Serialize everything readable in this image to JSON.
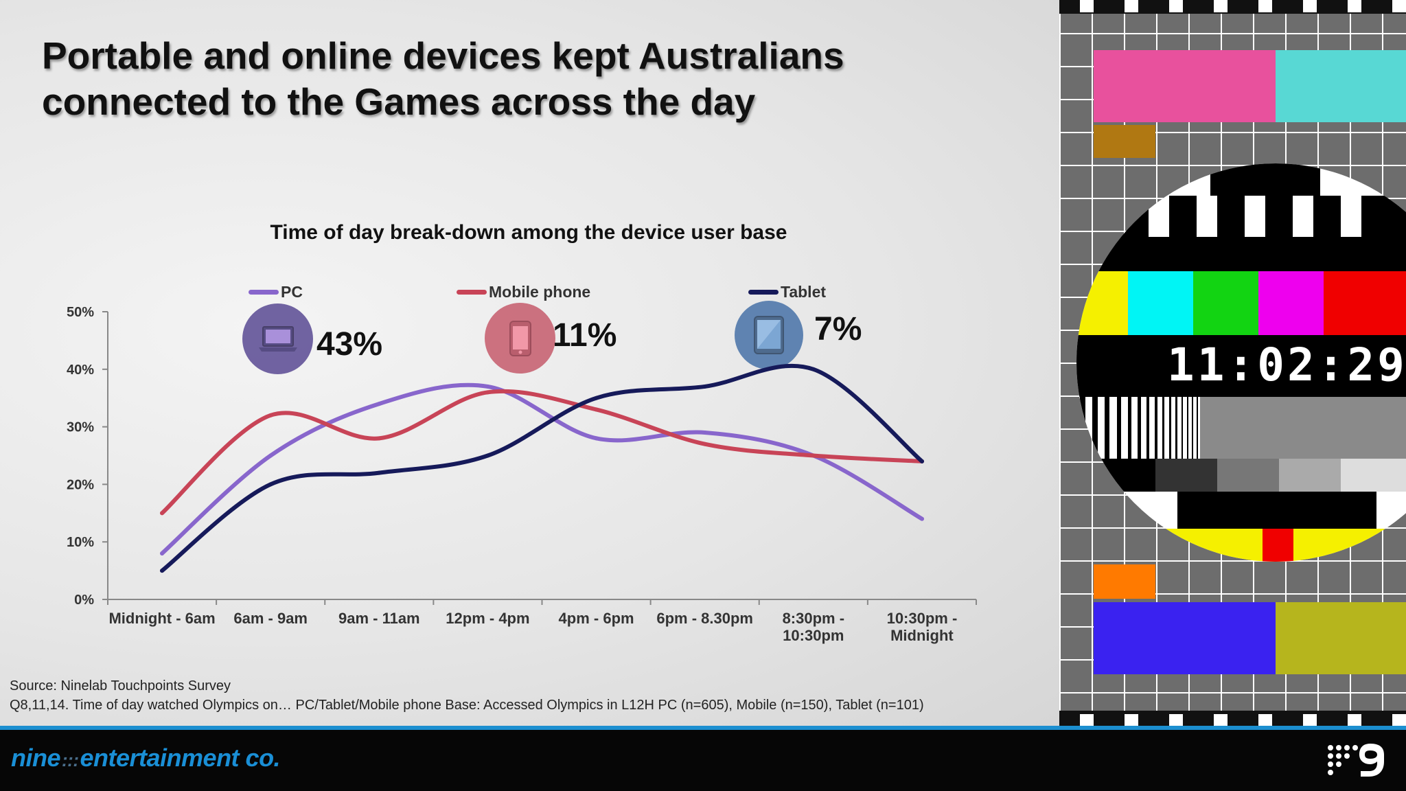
{
  "slide": {
    "headline": "Portable and online devices kept Australians connected to the Games across the day",
    "source_line1": "Source: Ninelab Touchpoints Survey",
    "source_line2": "Q8,11,14. Time of day watched Olympics on… PC/Tablet/Mobile phone Base: Accessed Olympics in L12H PC (n=605), Mobile (n=150), Tablet (n=101)"
  },
  "devices": [
    {
      "name": "PC",
      "share": "43%",
      "icon": "laptop-icon",
      "color": "#5a4a93"
    },
    {
      "name": "Mobile phone",
      "share": "11%",
      "icon": "smartphone-icon",
      "color": "#c65c6c"
    },
    {
      "name": "Tablet",
      "share": "7%",
      "icon": "tablet-icon",
      "color": "#4872a8"
    }
  ],
  "footer": {
    "brand_word1": "nine",
    "brand_dots": ":::",
    "brand_word2": "entertainment co.",
    "logo": "nine-network-logo"
  },
  "test_card": {
    "time": "11:02:29"
  },
  "chart_data": {
    "type": "line",
    "title": "Time of day break-down among the device user base",
    "xlabel": "",
    "ylabel": "",
    "categories": [
      "Midnight - 6am",
      "6am - 9am",
      "9am - 11am",
      "12pm - 4pm",
      "4pm - 6pm",
      "6pm - 8.30pm",
      "8:30pm - 10:30pm",
      "10:30pm - Midnight"
    ],
    "category_lines": [
      [
        "Midnight - 6am"
      ],
      [
        "6am - 9am"
      ],
      [
        "9am - 11am"
      ],
      [
        "12pm - 4pm"
      ],
      [
        "4pm - 6pm"
      ],
      [
        "6pm - 8.30pm"
      ],
      [
        "8:30pm -",
        "10:30pm"
      ],
      [
        "10:30pm -",
        "Midnight"
      ]
    ],
    "ylim": [
      0,
      50
    ],
    "yticks": [
      0,
      10,
      20,
      30,
      40,
      50
    ],
    "ytick_labels": [
      "0%",
      "10%",
      "20%",
      "30%",
      "40%",
      "50%"
    ],
    "grid": false,
    "legend": "top",
    "series": [
      {
        "name": "PC",
        "color": "#8866cc",
        "values": [
          8,
          25,
          34,
          37,
          28,
          29,
          25,
          14
        ]
      },
      {
        "name": "Mobile phone",
        "color": "#c84457",
        "values": [
          15,
          32,
          28,
          36,
          33,
          27,
          25,
          24
        ]
      },
      {
        "name": "Tablet",
        "color": "#161a5a",
        "values": [
          5,
          20,
          22,
          25,
          35,
          37,
          40,
          24
        ]
      }
    ]
  }
}
